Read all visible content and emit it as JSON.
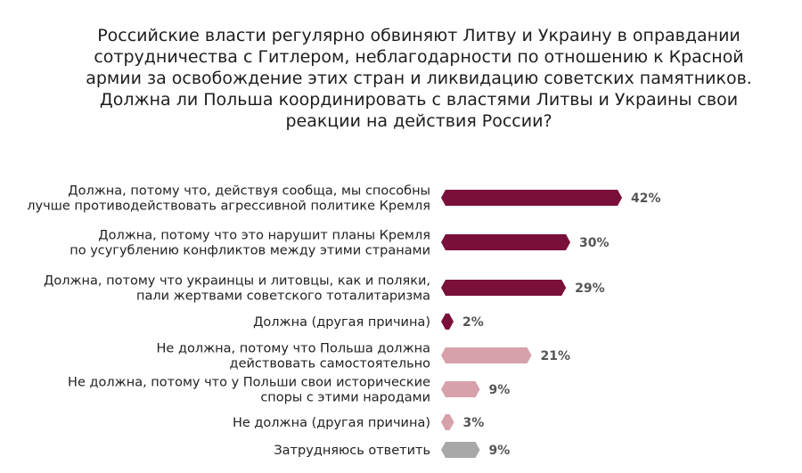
{
  "chart_data": {
    "type": "bar",
    "orientation": "horizontal",
    "title": "Российские власти регулярно обвиняют Литву и Украину в оправдании\nсотрудничества с Гитлером, неблагодарности по отношению к Красной\nармии за освобождение этих стран и ликвидацию советских памятников.\nДолжна ли Польша координировать с властями Литвы и Украины свои\nреакции на действия России?",
    "categories": [
      [
        "Должна, потому что, действуя сообща, мы способны",
        "лучше противодействовать агрессивной политике Кремля"
      ],
      [
        "Должна, потому что это нарушит планы Кремля",
        "по усугублению конфликтов между этими странами"
      ],
      [
        "Должна, потому что украинцы и литовцы, как и поляки,",
        "пали жертвами советского тоталитаризма"
      ],
      [
        "Должна (другая причина)"
      ],
      [
        "Не должна, потому что Польша должна",
        "действовать самостоятельно"
      ],
      [
        "Не должна, потому что у Польши свои исторические",
        "споры с этими народами"
      ],
      [
        "Не должна (другая причина)"
      ],
      [
        "Затрудняюсь ответить"
      ]
    ],
    "values": [
      42,
      30,
      29,
      2,
      21,
      9,
      3,
      9
    ],
    "value_labels": [
      "42%",
      "30%",
      "29%",
      "2%",
      "21%",
      "9%",
      "3%",
      "9%"
    ],
    "bar_colors": [
      "#7a0f3a",
      "#7a0f3a",
      "#7a0f3a",
      "#7a0f3a",
      "#d6a1ab",
      "#d6a1ab",
      "#d6a1ab",
      "#a8a8a8"
    ],
    "xlim": [
      0,
      42
    ],
    "grid": false,
    "legend": "none"
  }
}
